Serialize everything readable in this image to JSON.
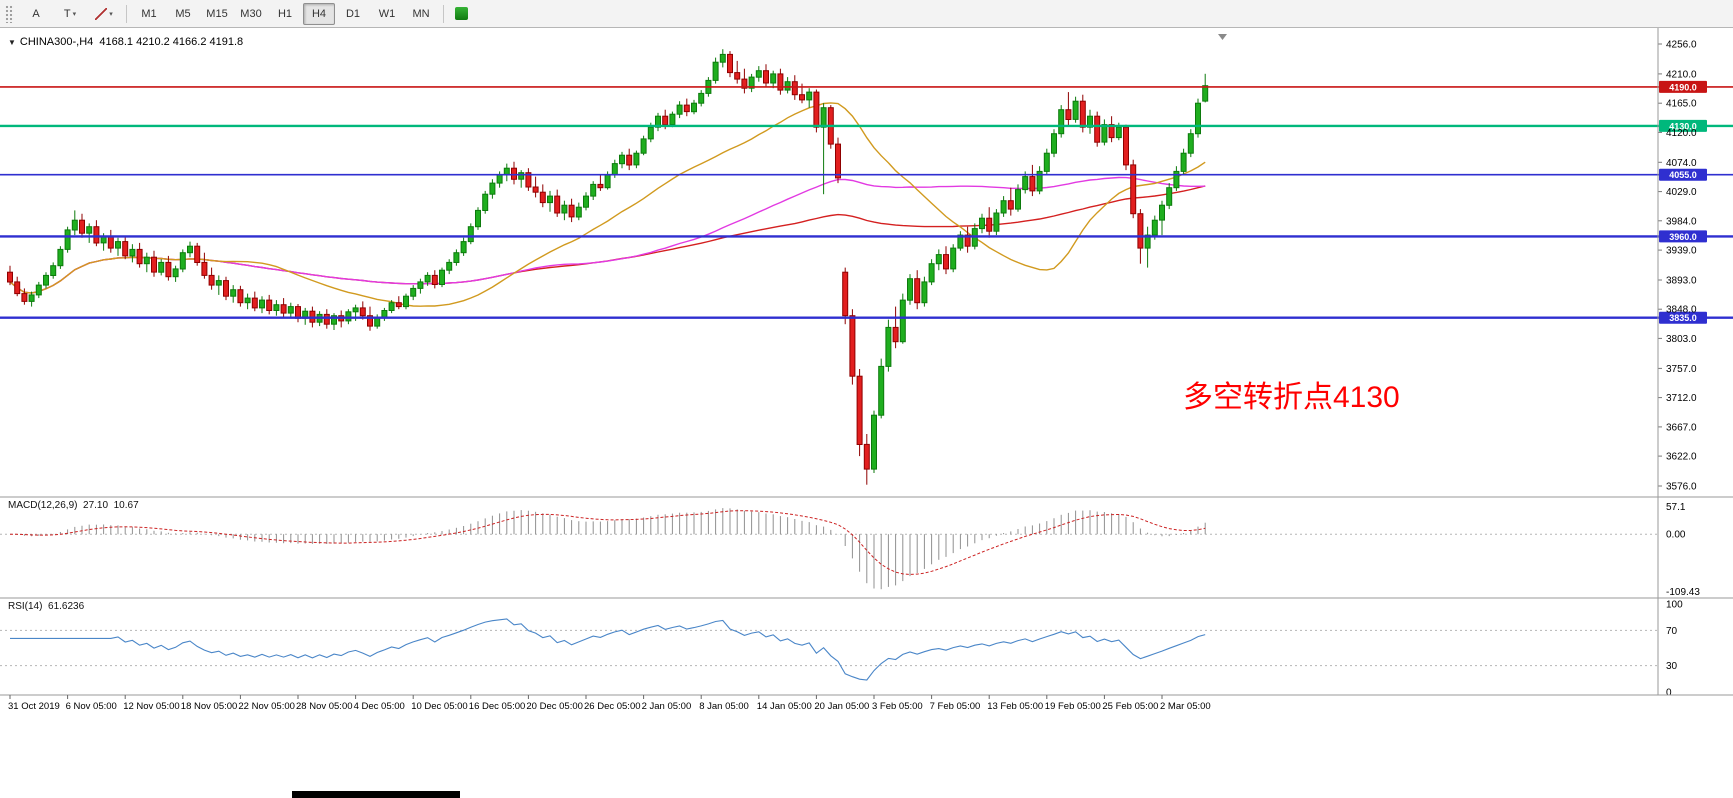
{
  "toolbar": {
    "tools": [
      {
        "name": "text-tool-button",
        "label": "A",
        "caret": false
      },
      {
        "name": "label-tool-button",
        "label": "T",
        "caret": true
      },
      {
        "name": "trendline-tool-button",
        "label": "",
        "caret": true
      }
    ],
    "timeframes": [
      "M1",
      "M5",
      "M15",
      "M30",
      "H1",
      "H4",
      "D1",
      "W1",
      "MN"
    ],
    "active_timeframe": "H4"
  },
  "icons": {
    "dropdown": "▼",
    "caret": "▾",
    "chart_shift": "▲"
  },
  "chart": {
    "title": "CHINA300-,H4",
    "ohlc": "4168.1 4210.2 4166.2 4191.8",
    "annotation": "多空转折点4130",
    "hlines": [
      {
        "price": 4190.0,
        "tag": "4190.0",
        "color": "#c81414",
        "width": 1.6
      },
      {
        "price": 4130.0,
        "tag": "4130.0",
        "color": "#00b87c",
        "width": 2.4
      },
      {
        "price": 4055.0,
        "tag": "4055.0",
        "color": "#2f2fd0",
        "width": 1.6
      },
      {
        "price": 3960.0,
        "tag": "3960.0",
        "color": "#2f2fd0",
        "width": 2.4
      },
      {
        "price": 3835.0,
        "tag": "3835.0",
        "color": "#2f2fd0",
        "width": 2.4
      }
    ]
  },
  "macd": {
    "title": "MACD(12,26,9)",
    "main_value": "27.10",
    "signal_value": "10.67",
    "scale_max": "57.1",
    "scale_zero": "0.00",
    "scale_min": "-109.43"
  },
  "rsi": {
    "title": "RSI(14)",
    "value": "61.6236",
    "scale": [
      "100",
      "70",
      "30",
      "0"
    ]
  },
  "colors": {
    "up_fill": "#1fae1f",
    "up_stroke": "#0c7a0c",
    "down_fill": "#e21f1f",
    "down_stroke": "#8f0000",
    "ma_fast": "#d19a1f",
    "ma_mid": "#e23ae2",
    "ma_slow": "#d42020",
    "macd_hist": "#909090",
    "macd_signal": "#cc2222",
    "rsi_line": "#4a86c8",
    "grid": "#b5b5b5",
    "frame": "#9a9a9a"
  },
  "chart_data": {
    "type": "candlestick",
    "symbol": "CHINA300-",
    "timeframe": "H4",
    "current": {
      "open": 4168.1,
      "high": 4210.2,
      "low": 4166.2,
      "close": 4191.8
    },
    "y_ticks": [
      4256.0,
      4210.0,
      4165.0,
      4120.0,
      4074.0,
      4029.0,
      3984.0,
      3939.0,
      3893.0,
      3848.0,
      3803.0,
      3757.0,
      3712.0,
      3667.0,
      3622.0,
      3576.0
    ],
    "y_range": [
      3576.0,
      4256.0
    ],
    "x_labels": [
      "31 Oct 2019",
      "6 Nov 05:00",
      "12 Nov 05:00",
      "18 Nov 05:00",
      "22 Nov 05:00",
      "28 Nov 05:00",
      "4 Dec 05:00",
      "10 Dec 05:00",
      "16 Dec 05:00",
      "20 Dec 05:00",
      "26 Dec 05:00",
      "2 Jan 05:00",
      "8 Jan 05:00",
      "14 Jan 05:00",
      "20 Jan 05:00",
      "3 Feb 05:00",
      "7 Feb 05:00",
      "13 Feb 05:00",
      "19 Feb 05:00",
      "25 Feb 05:00",
      "2 Mar 05:00"
    ],
    "candles_per_label": 8,
    "horizontal_levels": [
      4190.0,
      4130.0,
      4055.0,
      3960.0,
      3835.0
    ],
    "indicators": {
      "macd": {
        "fast": 12,
        "slow": 26,
        "signal": 9,
        "main": 27.1,
        "signal_value": 10.67,
        "scale": [
          57.1,
          0.0,
          -109.43
        ]
      },
      "rsi": {
        "period": 14,
        "value": 61.6236,
        "levels": [
          70,
          30
        ]
      }
    },
    "candles": [
      [
        3905,
        3915,
        3885,
        3890
      ],
      [
        3890,
        3898,
        3868,
        3872
      ],
      [
        3872,
        3880,
        3855,
        3860
      ],
      [
        3860,
        3875,
        3852,
        3870
      ],
      [
        3870,
        3890,
        3865,
        3885
      ],
      [
        3885,
        3905,
        3880,
        3900
      ],
      [
        3900,
        3920,
        3895,
        3915
      ],
      [
        3915,
        3945,
        3910,
        3940
      ],
      [
        3940,
        3975,
        3935,
        3970
      ],
      [
        3970,
        4000,
        3962,
        3985
      ],
      [
        3985,
        3995,
        3958,
        3965
      ],
      [
        3965,
        3980,
        3950,
        3975
      ],
      [
        3975,
        3985,
        3945,
        3950
      ],
      [
        3950,
        3965,
        3938,
        3960
      ],
      [
        3960,
        3970,
        3935,
        3942
      ],
      [
        3942,
        3958,
        3930,
        3952
      ],
      [
        3952,
        3960,
        3925,
        3930
      ],
      [
        3930,
        3948,
        3920,
        3940
      ],
      [
        3940,
        3950,
        3912,
        3918
      ],
      [
        3918,
        3935,
        3905,
        3928
      ],
      [
        3928,
        3938,
        3898,
        3905
      ],
      [
        3905,
        3925,
        3900,
        3920
      ],
      [
        3920,
        3930,
        3892,
        3898
      ],
      [
        3898,
        3915,
        3890,
        3910
      ],
      [
        3910,
        3940,
        3905,
        3935
      ],
      [
        3935,
        3952,
        3928,
        3945
      ],
      [
        3945,
        3950,
        3915,
        3920
      ],
      [
        3920,
        3935,
        3895,
        3900
      ],
      [
        3900,
        3912,
        3878,
        3885
      ],
      [
        3885,
        3900,
        3870,
        3892
      ],
      [
        3892,
        3898,
        3862,
        3868
      ],
      [
        3868,
        3885,
        3858,
        3878
      ],
      [
        3878,
        3884,
        3852,
        3858
      ],
      [
        3858,
        3872,
        3848,
        3865
      ],
      [
        3865,
        3875,
        3845,
        3850
      ],
      [
        3850,
        3868,
        3842,
        3862
      ],
      [
        3862,
        3870,
        3840,
        3846
      ],
      [
        3846,
        3862,
        3838,
        3855
      ],
      [
        3855,
        3865,
        3835,
        3842
      ],
      [
        3842,
        3858,
        3836,
        3852
      ],
      [
        3852,
        3856,
        3828,
        3834
      ],
      [
        3834,
        3850,
        3824,
        3845
      ],
      [
        3845,
        3852,
        3820,
        3828
      ],
      [
        3828,
        3845,
        3822,
        3840
      ],
      [
        3840,
        3848,
        3818,
        3825
      ],
      [
        3825,
        3842,
        3816,
        3838
      ],
      [
        3838,
        3846,
        3820,
        3830
      ],
      [
        3830,
        3848,
        3825,
        3844
      ],
      [
        3844,
        3855,
        3830,
        3850
      ],
      [
        3850,
        3860,
        3832,
        3838
      ],
      [
        3838,
        3852,
        3815,
        3822
      ],
      [
        3822,
        3840,
        3818,
        3836
      ],
      [
        3836,
        3850,
        3830,
        3846
      ],
      [
        3846,
        3862,
        3842,
        3858
      ],
      [
        3858,
        3868,
        3848,
        3852
      ],
      [
        3852,
        3872,
        3848,
        3868
      ],
      [
        3868,
        3885,
        3862,
        3880
      ],
      [
        3880,
        3895,
        3872,
        3890
      ],
      [
        3890,
        3905,
        3884,
        3900
      ],
      [
        3900,
        3908,
        3880,
        3886
      ],
      [
        3886,
        3912,
        3882,
        3908
      ],
      [
        3908,
        3925,
        3902,
        3920
      ],
      [
        3920,
        3940,
        3915,
        3935
      ],
      [
        3935,
        3958,
        3930,
        3952
      ],
      [
        3952,
        3980,
        3948,
        3975
      ],
      [
        3975,
        4005,
        3970,
        4000
      ],
      [
        4000,
        4030,
        3995,
        4025
      ],
      [
        4025,
        4048,
        4018,
        4042
      ],
      [
        4042,
        4060,
        4035,
        4055
      ],
      [
        4055,
        4072,
        4045,
        4065
      ],
      [
        4065,
        4075,
        4040,
        4048
      ],
      [
        4048,
        4062,
        4035,
        4058
      ],
      [
        4058,
        4065,
        4030,
        4036
      ],
      [
        4036,
        4052,
        4020,
        4028
      ],
      [
        4028,
        4040,
        4005,
        4012
      ],
      [
        4012,
        4030,
        3998,
        4022
      ],
      [
        4022,
        4032,
        3990,
        3996
      ],
      [
        3996,
        4015,
        3985,
        4008
      ],
      [
        4008,
        4018,
        3982,
        3990
      ],
      [
        3990,
        4012,
        3985,
        4005
      ],
      [
        4005,
        4028,
        4000,
        4022
      ],
      [
        4022,
        4045,
        4016,
        4040
      ],
      [
        4040,
        4055,
        4030,
        4035
      ],
      [
        4035,
        4060,
        4032,
        4055
      ],
      [
        4055,
        4078,
        4050,
        4072
      ],
      [
        4072,
        4090,
        4065,
        4085
      ],
      [
        4085,
        4095,
        4062,
        4070
      ],
      [
        4070,
        4092,
        4065,
        4088
      ],
      [
        4088,
        4115,
        4085,
        4110
      ],
      [
        4110,
        4135,
        4105,
        4128
      ],
      [
        4128,
        4150,
        4122,
        4145
      ],
      [
        4145,
        4155,
        4125,
        4132
      ],
      [
        4132,
        4152,
        4128,
        4148
      ],
      [
        4148,
        4168,
        4142,
        4162
      ],
      [
        4162,
        4172,
        4145,
        4152
      ],
      [
        4152,
        4170,
        4148,
        4165
      ],
      [
        4165,
        4185,
        4160,
        4180
      ],
      [
        4180,
        4205,
        4175,
        4200
      ],
      [
        4200,
        4235,
        4195,
        4228
      ],
      [
        4228,
        4248,
        4220,
        4240
      ],
      [
        4240,
        4245,
        4205,
        4212
      ],
      [
        4212,
        4230,
        4195,
        4202
      ],
      [
        4202,
        4218,
        4180,
        4188
      ],
      [
        4188,
        4210,
        4182,
        4205
      ],
      [
        4205,
        4222,
        4198,
        4215
      ],
      [
        4215,
        4225,
        4190,
        4196
      ],
      [
        4196,
        4215,
        4188,
        4210
      ],
      [
        4210,
        4218,
        4178,
        4185
      ],
      [
        4185,
        4205,
        4180,
        4198
      ],
      [
        4198,
        4208,
        4170,
        4178
      ],
      [
        4178,
        4195,
        4165,
        4170
      ],
      [
        4170,
        4188,
        4158,
        4182
      ],
      [
        4182,
        4186,
        4120,
        4128
      ],
      [
        4128,
        4165,
        4025,
        4158
      ],
      [
        4158,
        4162,
        4095,
        4102
      ],
      [
        4102,
        4112,
        4042,
        4050
      ],
      [
        3905,
        3912,
        3825,
        3838
      ],
      [
        3838,
        3848,
        3732,
        3745
      ],
      [
        3745,
        3756,
        3622,
        3640
      ],
      [
        3640,
        3656,
        3578,
        3602
      ],
      [
        3602,
        3692,
        3596,
        3685
      ],
      [
        3685,
        3772,
        3680,
        3760
      ],
      [
        3760,
        3832,
        3752,
        3820
      ],
      [
        3820,
        3852,
        3788,
        3798
      ],
      [
        3798,
        3872,
        3795,
        3862
      ],
      [
        3862,
        3902,
        3855,
        3895
      ],
      [
        3895,
        3908,
        3848,
        3858
      ],
      [
        3858,
        3898,
        3852,
        3890
      ],
      [
        3890,
        3925,
        3885,
        3918
      ],
      [
        3918,
        3940,
        3908,
        3932
      ],
      [
        3932,
        3945,
        3902,
        3910
      ],
      [
        3910,
        3948,
        3905,
        3942
      ],
      [
        3942,
        3968,
        3938,
        3962
      ],
      [
        3962,
        3975,
        3935,
        3945
      ],
      [
        3945,
        3980,
        3940,
        3972
      ],
      [
        3972,
        3995,
        3965,
        3988
      ],
      [
        3988,
        4005,
        3958,
        3968
      ],
      [
        3968,
        4002,
        3962,
        3996
      ],
      [
        3996,
        4022,
        3990,
        4015
      ],
      [
        4015,
        4035,
        3992,
        4002
      ],
      [
        4002,
        4040,
        3998,
        4032
      ],
      [
        4032,
        4060,
        4026,
        4052
      ],
      [
        4052,
        4070,
        4022,
        4030
      ],
      [
        4030,
        4068,
        4025,
        4060
      ],
      [
        4060,
        4095,
        4055,
        4088
      ],
      [
        4088,
        4125,
        4082,
        4118
      ],
      [
        4118,
        4162,
        4112,
        4155
      ],
      [
        4155,
        4182,
        4130,
        4140
      ],
      [
        4140,
        4175,
        4135,
        4168
      ],
      [
        4168,
        4178,
        4120,
        4128
      ],
      [
        4128,
        4155,
        4118,
        4145
      ],
      [
        4145,
        4152,
        4098,
        4105
      ],
      [
        4105,
        4140,
        4100,
        4132
      ],
      [
        4132,
        4145,
        4105,
        4112
      ],
      [
        4112,
        4135,
        4108,
        4128
      ],
      [
        4128,
        4132,
        4062,
        4070
      ],
      [
        4070,
        4078,
        3988,
        3995
      ],
      [
        3995,
        4002,
        3918,
        3942
      ],
      [
        3942,
        3975,
        3912,
        3962
      ],
      [
        3962,
        3992,
        3955,
        3985
      ],
      [
        3985,
        4015,
        3962,
        4008
      ],
      [
        4008,
        4042,
        4002,
        4035
      ],
      [
        4035,
        4068,
        4030,
        4060
      ],
      [
        4060,
        4095,
        4055,
        4088
      ],
      [
        4088,
        4125,
        4082,
        4118
      ],
      [
        4118,
        4172,
        4112,
        4165
      ],
      [
        4168.1,
        4210.2,
        4166.2,
        4191.8
      ]
    ]
  }
}
